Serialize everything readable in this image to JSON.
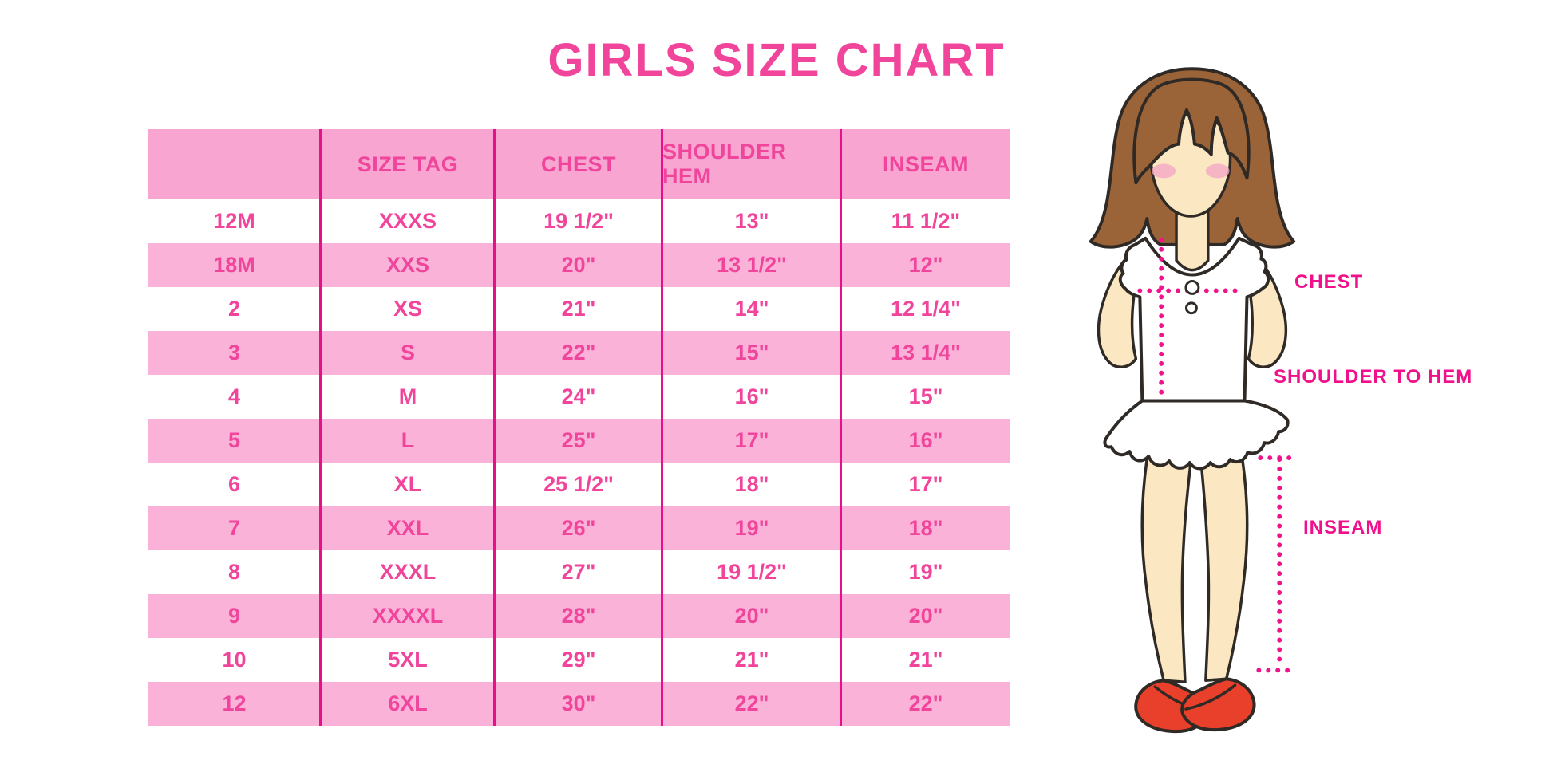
{
  "title": "GIRLS SIZE CHART",
  "table": {
    "columns": [
      "",
      "SIZE TAG",
      "CHEST",
      "SHOULDER HEM",
      "INSEAM"
    ],
    "rows": [
      [
        "12M",
        "XXXS",
        "19 1/2\"",
        "13\"",
        "11 1/2\""
      ],
      [
        "18M",
        "XXS",
        "20\"",
        "13 1/2\"",
        "12\""
      ],
      [
        "2",
        "XS",
        "21\"",
        "14\"",
        "12 1/4\""
      ],
      [
        "3",
        "S",
        "22\"",
        "15\"",
        "13 1/4\""
      ],
      [
        "4",
        "M",
        "24\"",
        "16\"",
        "15\""
      ],
      [
        "5",
        "L",
        "25\"",
        "17\"",
        "16\""
      ],
      [
        "6",
        "XL",
        "25 1/2\"",
        "18\"",
        "17\""
      ],
      [
        "7",
        "XXL",
        "26\"",
        "19\"",
        "18\""
      ],
      [
        "8",
        "XXXL",
        "27\"",
        "19 1/2\"",
        "19\""
      ],
      [
        "9",
        "XXXXL",
        "28\"",
        "20\"",
        "20\""
      ],
      [
        "10",
        "5XL",
        "29\"",
        "21\"",
        "21\""
      ],
      [
        "12",
        "6XL",
        "30\"",
        "22\"",
        "22\""
      ]
    ]
  },
  "diagram": {
    "labels": {
      "chest": "CHEST",
      "shoulder_to_hem": "SHOULDER TO HEM",
      "inseam": "INSEAM"
    }
  },
  "colors": {
    "title_pink": "#F0459B",
    "cell_text": "#F0459B",
    "header_bg": "#F8A5D2",
    "row_pink": "#FBB2D9",
    "divider": "#E5108A",
    "magenta_label": "#F0108C",
    "dot_line": "#F0148C",
    "hair_brown": "#9B6438",
    "skin": "#FBE7C2",
    "blush": "#F5A9C6",
    "shoe_red": "#E8402A",
    "outline": "#2F2A26"
  }
}
